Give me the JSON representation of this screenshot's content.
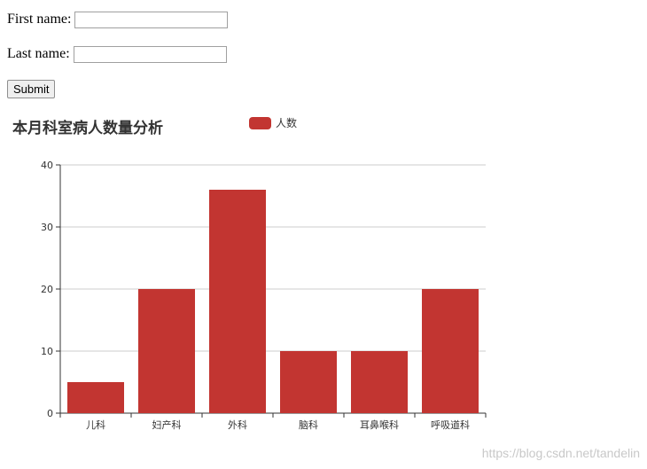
{
  "form": {
    "first_name_label": "First name:",
    "first_name_value": "",
    "last_name_label": "Last name:",
    "last_name_value": "",
    "submit_label": "Submit"
  },
  "chart_data": {
    "type": "bar",
    "title": "本月科室病人数量分析",
    "categories": [
      "儿科",
      "妇产科",
      "外科",
      "脑科",
      "耳鼻喉科",
      "呼吸道科"
    ],
    "series": [
      {
        "name": "人数",
        "values": [
          5,
          20,
          36,
          10,
          10,
          20
        ]
      }
    ],
    "ylim": [
      0,
      40
    ],
    "yticks": [
      0,
      10,
      20,
      30,
      40
    ],
    "grid": true,
    "legend_position": "top-center",
    "colors": {
      "bar": "#c23531",
      "axis": "#333333",
      "grid": "#cccccc"
    }
  },
  "watermark": "https://blog.csdn.net/tandelin"
}
